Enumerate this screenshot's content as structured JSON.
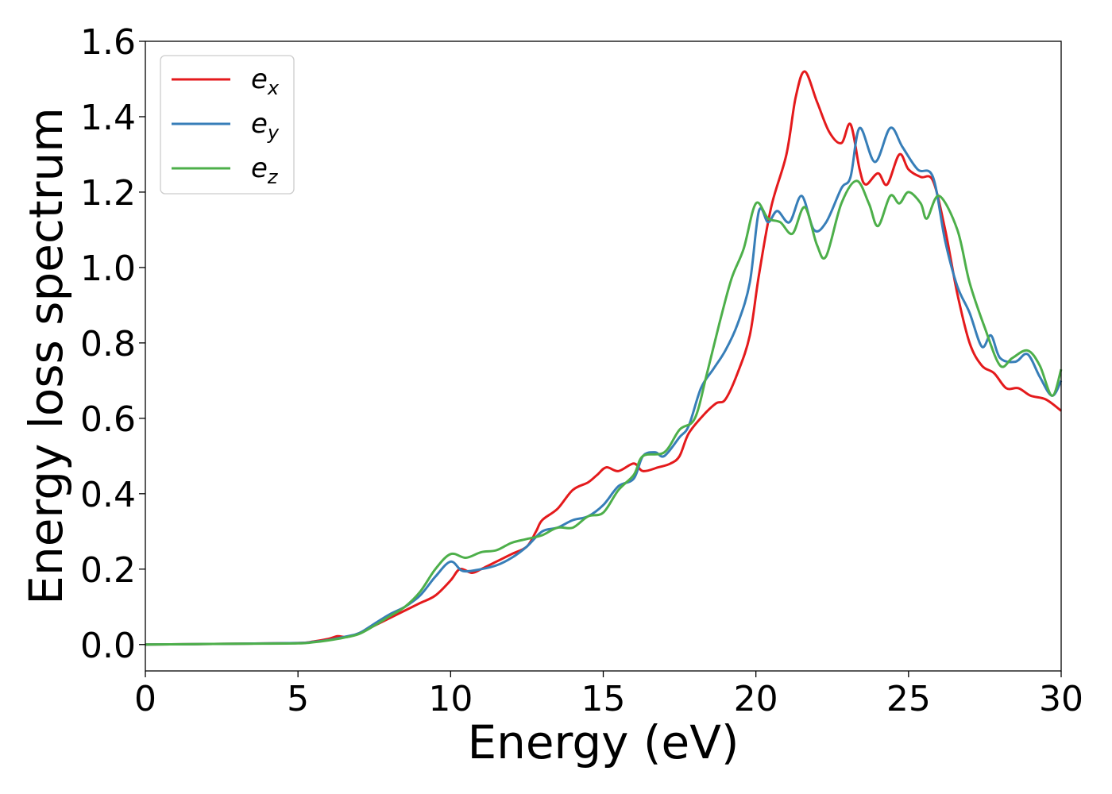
{
  "chart_data": {
    "type": "line",
    "title": "",
    "xlabel": "Energy (eV)",
    "ylabel": "Energy loss spectrum",
    "xlim": [
      0,
      30
    ],
    "ylim": [
      -0.07,
      1.6
    ],
    "xticks": [
      "0",
      "5",
      "10",
      "15",
      "20",
      "25",
      "30"
    ],
    "yticks": [
      "0.0",
      "0.2",
      "0.4",
      "0.6",
      "0.8",
      "1.0",
      "1.2",
      "1.4",
      "1.6"
    ],
    "grid": false,
    "legend_position": "top-left",
    "series": [
      {
        "name": "e_x",
        "label_base": "e",
        "label_sub": "x",
        "color": "#e41a1c",
        "points": [
          [
            0,
            0
          ],
          [
            3,
            0.002
          ],
          [
            5,
            0.004
          ],
          [
            5.5,
            0.008
          ],
          [
            6,
            0.015
          ],
          [
            6.3,
            0.022
          ],
          [
            6.6,
            0.02
          ],
          [
            7,
            0.03
          ],
          [
            7.5,
            0.05
          ],
          [
            8,
            0.07
          ],
          [
            8.5,
            0.09
          ],
          [
            9,
            0.11
          ],
          [
            9.5,
            0.13
          ],
          [
            10,
            0.17
          ],
          [
            10.3,
            0.2
          ],
          [
            10.7,
            0.19
          ],
          [
            11,
            0.2
          ],
          [
            11.5,
            0.22
          ],
          [
            12,
            0.24
          ],
          [
            12.5,
            0.26
          ],
          [
            12.8,
            0.3
          ],
          [
            13,
            0.33
          ],
          [
            13.5,
            0.36
          ],
          [
            14,
            0.41
          ],
          [
            14.5,
            0.43
          ],
          [
            14.8,
            0.45
          ],
          [
            15.1,
            0.47
          ],
          [
            15.5,
            0.46
          ],
          [
            16,
            0.48
          ],
          [
            16.3,
            0.46
          ],
          [
            16.8,
            0.47
          ],
          [
            17.2,
            0.48
          ],
          [
            17.5,
            0.5
          ],
          [
            17.8,
            0.56
          ],
          [
            18.3,
            0.61
          ],
          [
            18.7,
            0.64
          ],
          [
            19,
            0.65
          ],
          [
            19.4,
            0.72
          ],
          [
            19.8,
            0.82
          ],
          [
            20.1,
            0.98
          ],
          [
            20.5,
            1.16
          ],
          [
            21,
            1.3
          ],
          [
            21.3,
            1.45
          ],
          [
            21.6,
            1.52
          ],
          [
            22,
            1.44
          ],
          [
            22.4,
            1.36
          ],
          [
            22.8,
            1.33
          ],
          [
            23.1,
            1.38
          ],
          [
            23.4,
            1.26
          ],
          [
            23.6,
            1.22
          ],
          [
            24,
            1.25
          ],
          [
            24.3,
            1.22
          ],
          [
            24.7,
            1.3
          ],
          [
            25,
            1.26
          ],
          [
            25.4,
            1.24
          ],
          [
            25.8,
            1.23
          ],
          [
            26.2,
            1.1
          ],
          [
            26.6,
            0.93
          ],
          [
            27,
            0.8
          ],
          [
            27.4,
            0.74
          ],
          [
            27.8,
            0.72
          ],
          [
            28.2,
            0.68
          ],
          [
            28.6,
            0.68
          ],
          [
            29,
            0.66
          ],
          [
            29.5,
            0.65
          ],
          [
            30,
            0.62
          ]
        ]
      },
      {
        "name": "e_y",
        "label_base": "e",
        "label_sub": "y",
        "color": "#377eb8",
        "points": [
          [
            0,
            0
          ],
          [
            3,
            0.002
          ],
          [
            5,
            0.004
          ],
          [
            5.5,
            0.007
          ],
          [
            6,
            0.012
          ],
          [
            6.5,
            0.02
          ],
          [
            7,
            0.03
          ],
          [
            7.5,
            0.055
          ],
          [
            8,
            0.08
          ],
          [
            8.5,
            0.1
          ],
          [
            9,
            0.13
          ],
          [
            9.5,
            0.18
          ],
          [
            10,
            0.22
          ],
          [
            10.4,
            0.195
          ],
          [
            11,
            0.2
          ],
          [
            11.5,
            0.21
          ],
          [
            12,
            0.23
          ],
          [
            12.5,
            0.26
          ],
          [
            13,
            0.3
          ],
          [
            13.5,
            0.31
          ],
          [
            14,
            0.33
          ],
          [
            14.5,
            0.34
          ],
          [
            15,
            0.37
          ],
          [
            15.5,
            0.42
          ],
          [
            16,
            0.44
          ],
          [
            16.3,
            0.5
          ],
          [
            16.7,
            0.51
          ],
          [
            17,
            0.5
          ],
          [
            17.5,
            0.55
          ],
          [
            17.8,
            0.58
          ],
          [
            18.2,
            0.68
          ],
          [
            18.6,
            0.73
          ],
          [
            19,
            0.78
          ],
          [
            19.4,
            0.85
          ],
          [
            19.8,
            0.96
          ],
          [
            20.1,
            1.15
          ],
          [
            20.4,
            1.12
          ],
          [
            20.7,
            1.15
          ],
          [
            21.1,
            1.12
          ],
          [
            21.5,
            1.19
          ],
          [
            21.9,
            1.1
          ],
          [
            22.3,
            1.12
          ],
          [
            22.8,
            1.21
          ],
          [
            23.1,
            1.24
          ],
          [
            23.4,
            1.37
          ],
          [
            23.9,
            1.28
          ],
          [
            24.4,
            1.37
          ],
          [
            24.8,
            1.32
          ],
          [
            25.3,
            1.26
          ],
          [
            25.8,
            1.24
          ],
          [
            26.2,
            1.07
          ],
          [
            26.6,
            0.95
          ],
          [
            27,
            0.88
          ],
          [
            27.4,
            0.79
          ],
          [
            27.7,
            0.82
          ],
          [
            28,
            0.76
          ],
          [
            28.5,
            0.75
          ],
          [
            28.9,
            0.77
          ],
          [
            29.3,
            0.71
          ],
          [
            29.7,
            0.66
          ],
          [
            30,
            0.7
          ]
        ]
      },
      {
        "name": "e_z",
        "label_base": "e",
        "label_sub": "z",
        "color": "#4daf4a",
        "points": [
          [
            0,
            0
          ],
          [
            3,
            0.002
          ],
          [
            5,
            0.003
          ],
          [
            5.5,
            0.006
          ],
          [
            6,
            0.011
          ],
          [
            6.5,
            0.018
          ],
          [
            7,
            0.028
          ],
          [
            7.5,
            0.05
          ],
          [
            8,
            0.075
          ],
          [
            8.5,
            0.1
          ],
          [
            9,
            0.14
          ],
          [
            9.5,
            0.2
          ],
          [
            10,
            0.24
          ],
          [
            10.5,
            0.23
          ],
          [
            11,
            0.245
          ],
          [
            11.5,
            0.25
          ],
          [
            12,
            0.27
          ],
          [
            12.5,
            0.28
          ],
          [
            13,
            0.29
          ],
          [
            13.5,
            0.31
          ],
          [
            14,
            0.31
          ],
          [
            14.5,
            0.34
          ],
          [
            15,
            0.35
          ],
          [
            15.5,
            0.41
          ],
          [
            16,
            0.45
          ],
          [
            16.3,
            0.5
          ],
          [
            17,
            0.51
          ],
          [
            17.5,
            0.57
          ],
          [
            18,
            0.6
          ],
          [
            18.4,
            0.72
          ],
          [
            18.8,
            0.85
          ],
          [
            19.2,
            0.97
          ],
          [
            19.6,
            1.05
          ],
          [
            20,
            1.17
          ],
          [
            20.4,
            1.13
          ],
          [
            20.8,
            1.12
          ],
          [
            21.2,
            1.09
          ],
          [
            21.6,
            1.16
          ],
          [
            22,
            1.06
          ],
          [
            22.3,
            1.03
          ],
          [
            22.8,
            1.17
          ],
          [
            23.3,
            1.23
          ],
          [
            23.7,
            1.17
          ],
          [
            24,
            1.11
          ],
          [
            24.4,
            1.19
          ],
          [
            24.7,
            1.17
          ],
          [
            25,
            1.2
          ],
          [
            25.4,
            1.17
          ],
          [
            25.6,
            1.13
          ],
          [
            26,
            1.19
          ],
          [
            26.6,
            1.1
          ],
          [
            27,
            0.96
          ],
          [
            27.5,
            0.84
          ],
          [
            28,
            0.74
          ],
          [
            28.4,
            0.76
          ],
          [
            28.9,
            0.78
          ],
          [
            29.3,
            0.74
          ],
          [
            29.7,
            0.66
          ],
          [
            30,
            0.73
          ]
        ]
      }
    ]
  }
}
